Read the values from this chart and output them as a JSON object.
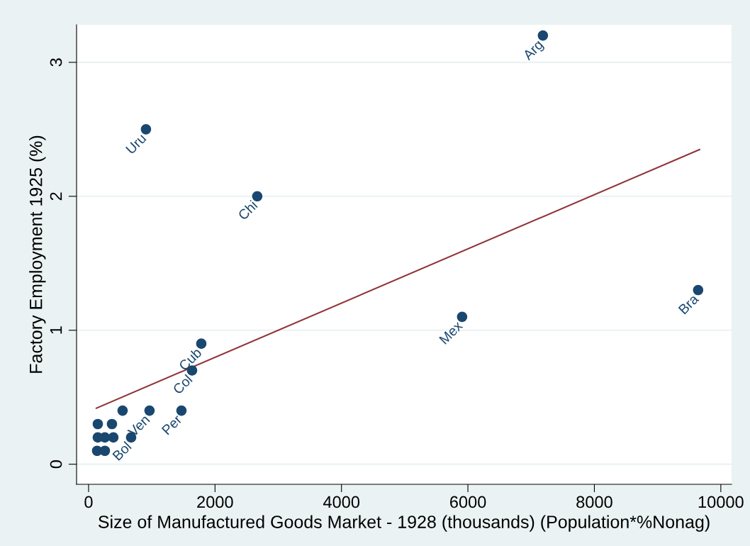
{
  "chart_data": {
    "type": "scatter",
    "xlabel": "Size of Manufactured Goods Market - 1928 (thousands) (Population*%Nonag)",
    "ylabel": "Factory Employment 1925 (%)",
    "xlim": [
      -190,
      10170
    ],
    "ylim": [
      -0.15,
      3.28
    ],
    "xticks": [
      0,
      2000,
      4000,
      6000,
      8000,
      10000
    ],
    "yticks": [
      0,
      1,
      2,
      3
    ],
    "grid": "y",
    "legend": false,
    "marker": "circle",
    "series": [
      {
        "color": "#1a476f",
        "x": [
          7186,
          908,
          2668,
          9641,
          5908,
          1783,
          1637,
          1469,
          964,
          538,
          146,
          370,
          146,
          258,
          392,
          673,
          135,
          258
        ],
        "values": [
          3.2,
          2.5,
          2.0,
          1.3,
          1.1,
          0.9,
          0.7,
          0.4,
          0.4,
          0.4,
          0.3,
          0.3,
          0.2,
          0.2,
          0.2,
          0.2,
          0.1,
          0.1
        ]
      },
      {
        "type": "line",
        "marker": "none",
        "color": "#90353b",
        "x": [
          123,
          9664
        ],
        "values": [
          0.418,
          2.349
        ]
      }
    ],
    "annotations": [
      {
        "text": "Arg",
        "x": 7186,
        "y": 3.2
      },
      {
        "text": "Uru",
        "x": 908,
        "y": 2.5
      },
      {
        "text": "Chi",
        "x": 2668,
        "y": 2.0
      },
      {
        "text": "Bra",
        "x": 9641,
        "y": 1.3
      },
      {
        "text": "Mex",
        "x": 5908,
        "y": 1.1
      },
      {
        "text": "Cub",
        "x": 1783,
        "y": 0.9
      },
      {
        "text": "Col",
        "x": 1637,
        "y": 0.7
      },
      {
        "text": "Per",
        "x": 1469,
        "y": 0.4
      },
      {
        "text": "Ven",
        "x": 964,
        "y": 0.4
      },
      {
        "text": "Bol",
        "x": 673,
        "y": 0.2
      }
    ]
  }
}
